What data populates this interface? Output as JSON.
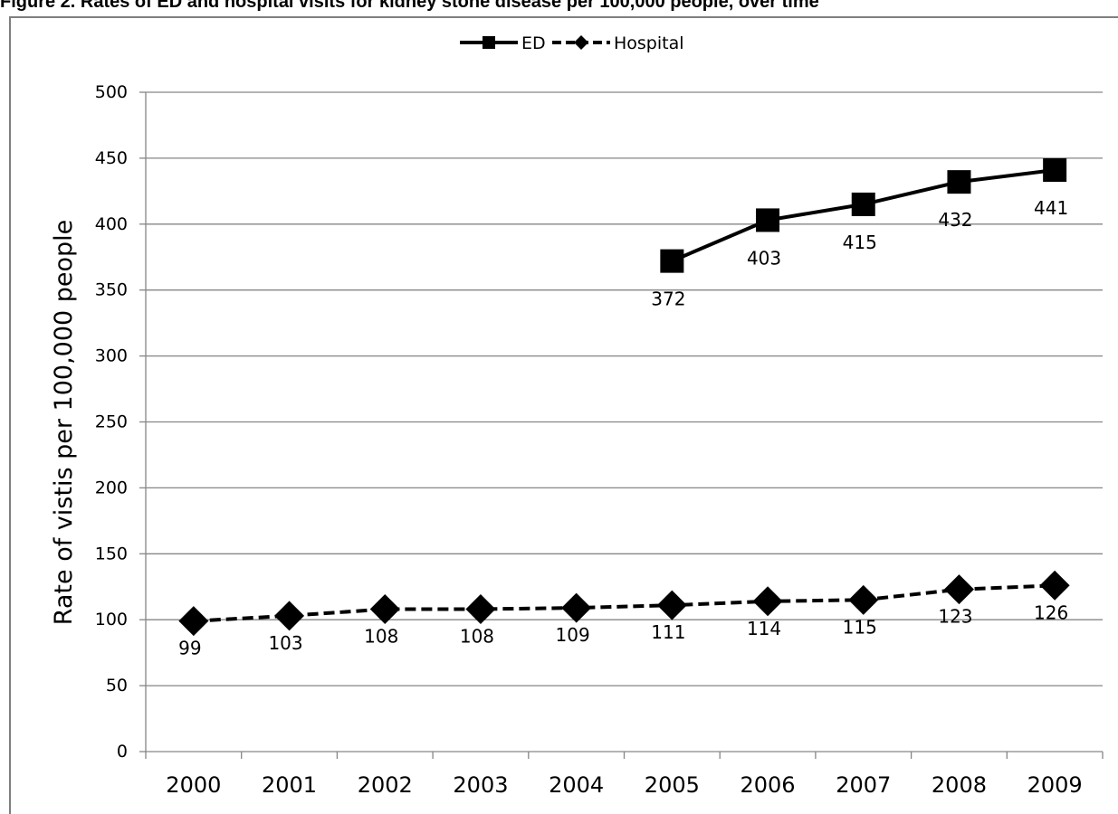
{
  "chart_data": {
    "type": "line",
    "title": "Figure 2. Rates of ED and hospital visits for kidney stone disease per 100,000 people, over time",
    "xlabel": "",
    "ylabel": "Rate of vistis per 100,000 people",
    "categories": [
      "2000",
      "2001",
      "2002",
      "2003",
      "2004",
      "2005",
      "2006",
      "2007",
      "2008",
      "2009"
    ],
    "ylim": [
      0,
      500
    ],
    "yticks": [
      0,
      50,
      100,
      150,
      200,
      250,
      300,
      350,
      400,
      450,
      500
    ],
    "grid": true,
    "legend": "top-center",
    "series": [
      {
        "name": "ED",
        "marker": "square",
        "line_style": "solid",
        "color": "#000000",
        "values": [
          null,
          null,
          null,
          null,
          null,
          372,
          403,
          415,
          432,
          441
        ],
        "labels": [
          "",
          "",
          "",
          "",
          "",
          "372",
          "403",
          "415",
          "432",
          "441"
        ]
      },
      {
        "name": "Hospital",
        "marker": "diamond",
        "line_style": "dashed",
        "color": "#000000",
        "values": [
          99,
          103,
          108,
          108,
          109,
          111,
          114,
          115,
          123,
          126
        ],
        "labels": [
          "99",
          "103",
          "108",
          "108",
          "109",
          "111",
          "114",
          "115",
          "123",
          "126"
        ]
      }
    ]
  }
}
